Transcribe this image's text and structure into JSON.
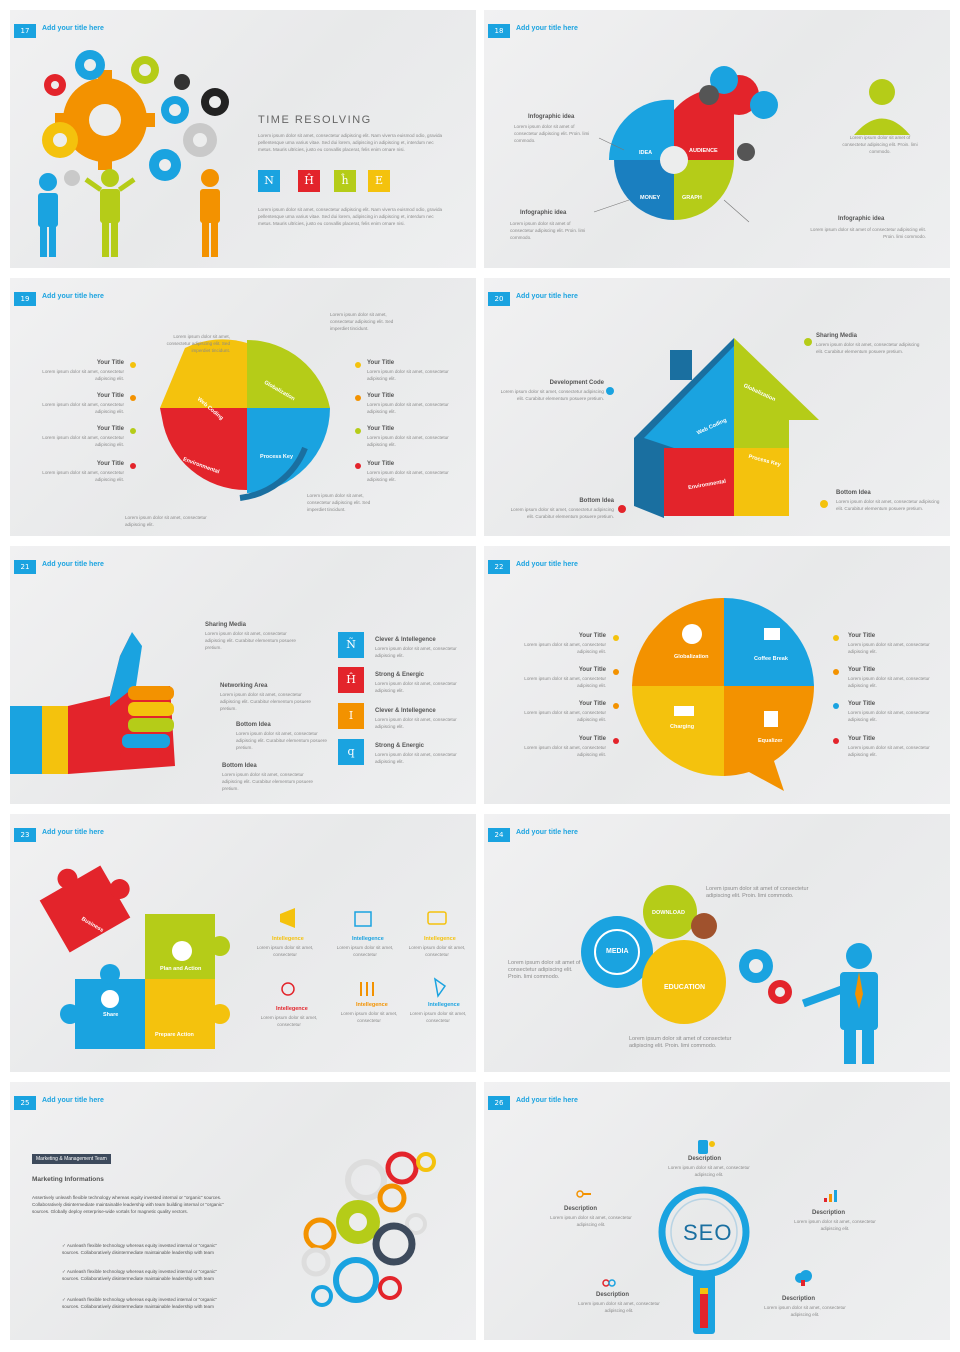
{
  "common_title": "Add your title here",
  "lorem_short": "Lorem ipsum dolor sit amet, consectetur adipiscing elit.",
  "lorem_long": "Lorem ipsum dolor sit amet, consectetur adipiscing elit. Curabitur elementum posuere pretium.",
  "slides": [
    {
      "num": "17",
      "heading": "TIME RESOLVING",
      "para1": "Lorem ipsum dolor sit amet, consectetur adipiscing elit. Nam viverra euismod odio, gravida pellentesque urna varius vitae. Sed dui lorem, adipiscing in adipiscing et, interdum nec metus. Mauris ultricies, justo eu convallis placerat, felis enim ornare nisi.",
      "para2": "Lorem ipsum dolor sit amet, consectetur adipiscing elit. Nam viverra euismod odio, gravida pellentesque urna varius vitae. Sed dui lorem, adipiscing in adipiscing et, interdum nec metus. Mauris ultricies, justo eu convallis placerat, felis enim ornare nisi.",
      "squares": [
        "N",
        "Ĥ",
        "ĥ",
        "E"
      ]
    },
    {
      "num": "18",
      "labels": [
        "Infographic idea",
        "Infographic idea",
        "Infographic idea"
      ],
      "desc": "Lorem ipsum dolor sit amet of consectetur adipiscing elit. Proin. limi commodo.",
      "gear_labels": [
        "IDEA",
        "AUDIENCE",
        "MONEY",
        "GRAPH"
      ]
    },
    {
      "num": "19",
      "your_title": "Your Title",
      "small": "Lorem ipsum dolor sit amet, consectetur adipiscing elit. Sed imperdiet tincidunt.",
      "pieces": [
        "Globalization",
        "Web Coding",
        "Environmental",
        "Process Key"
      ]
    },
    {
      "num": "20",
      "labels": [
        "Sharing Media",
        "Development Code",
        "Bottom Idea",
        "Bottom Idea"
      ],
      "pieces": [
        "Globalization",
        "Web Coding",
        "Environmental",
        "Process Key"
      ]
    },
    {
      "num": "21",
      "left_labels": [
        "Sharing Media",
        "Networking Area",
        "Bottom Idea",
        "Bottom Idea"
      ],
      "right_labels": [
        "Clever & Intellegence",
        "Strong & Energic",
        "Clever & Intellegence",
        "Strong & Energic"
      ],
      "squares": [
        "Ñ",
        "Ĥ",
        "I",
        "q"
      ]
    },
    {
      "num": "22",
      "your_title": "Your Title",
      "pieces": [
        "Globalization",
        "Coffee Break",
        "Charging",
        "Equalizer"
      ]
    },
    {
      "num": "23",
      "pieces": [
        "Business",
        "Plan and Action",
        "Share",
        "Prepare Action"
      ],
      "icon_label": "Intellegence",
      "icon_text": "Lorem ipsum dolor sit amet, consectetur"
    },
    {
      "num": "24",
      "gear_labels": [
        "DOWNLOAD",
        "MEDIA",
        "EDUCATION"
      ],
      "text1": "Lorem ipsum dolor sit amet of consectetur adipiscing elit. Proin. limi commodo.",
      "text2": "Lorem ipsum dolor sit amet of consectetur adipiscing elit. Proin. limi commodo.",
      "text3": "Lorem ipsum dolor sit amet of consectetur adipiscing elit. Proin. limi commodo."
    },
    {
      "num": "25",
      "tag": "Marketing & Management Team",
      "heading": "Marketing Informations",
      "para": "Assertively unleash flexible technology whereas equity invested internal or \"organic\" sources. Collaboratively disintermediate maintainable leadership with team building internal or \"organic\" sources. Globally deploy enterprise-wide vortals for magnetic quality vectors.",
      "bullet": "Aunleash flexible technology whereas equity invested internal or \"organic\" sources. Collaboratively disintermediate maintainable leadership with team"
    },
    {
      "num": "26",
      "seo": "SEO",
      "desc_label": "Description",
      "desc_text": "Lorem ipsum dolor sit amet, consectetur adipiscing elit."
    }
  ],
  "colors": {
    "blue": "#1aa3e0",
    "red": "#e3242b",
    "yellow": "#f4c20d",
    "green": "#b5cc18",
    "orange": "#f39200"
  }
}
